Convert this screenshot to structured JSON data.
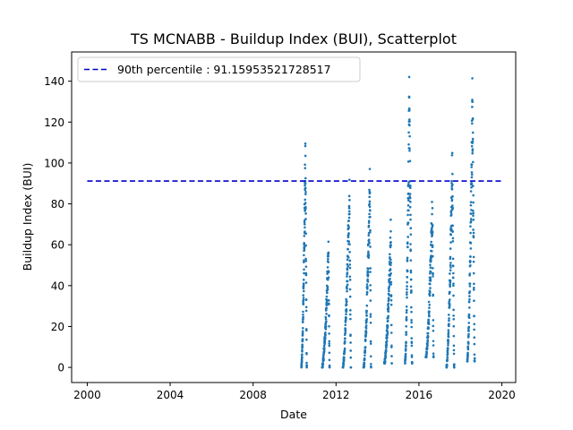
{
  "chart_data": {
    "type": "scatter",
    "title": "TS MCNABB - Buildup Index (BUI), Scatterplot",
    "xlabel": "Date",
    "ylabel": "Buildup Index (BUI)",
    "xlim": [
      "1999-04-01",
      "2020-09-01"
    ],
    "ylim": [
      -7.4,
      154.3
    ],
    "x_ticks": [
      "2000",
      "2004",
      "2008",
      "2012",
      "2016",
      "2020"
    ],
    "y_ticks": [
      0,
      20,
      40,
      60,
      80,
      100,
      120,
      140
    ],
    "grid": false,
    "legend_position": "upper-left",
    "colors": {
      "points": "#1f77b4",
      "percentile_line": "#0000cc"
    },
    "reference_line": {
      "label": "90th percentile : 91.15953521728517",
      "y": 91.15953521728517,
      "x_start": "2000-01-01",
      "x_end": "2020-01-01",
      "style": "dashed"
    },
    "series": [
      {
        "seasons": [
          {
            "start": "2010-05-01",
            "end": "2010-08-05",
            "min": 0,
            "peak": 120,
            "peak_date": "2010-07-10"
          },
          {
            "start": "2011-05-01",
            "end": "2011-09-10",
            "min": 0,
            "peak": 64,
            "peak_date": "2011-08-20"
          },
          {
            "start": "2012-05-01",
            "end": "2012-09-20",
            "min": 0,
            "peak": 99,
            "peak_date": "2012-08-25"
          },
          {
            "start": "2013-05-01",
            "end": "2013-09-10",
            "min": 0,
            "peak": 102,
            "peak_date": "2013-08-20"
          },
          {
            "start": "2014-05-01",
            "end": "2014-09-10",
            "min": 2,
            "peak": 75,
            "peak_date": "2014-08-25"
          },
          {
            "start": "2015-05-01",
            "end": "2015-09-05",
            "min": 2,
            "peak": 148,
            "peak_date": "2015-07-15"
          },
          {
            "start": "2016-05-01",
            "end": "2016-09-15",
            "min": 5,
            "peak": 93,
            "peak_date": "2016-08-25"
          },
          {
            "start": "2017-05-01",
            "end": "2017-09-15",
            "min": 0,
            "peak": 114,
            "peak_date": "2017-08-10"
          },
          {
            "start": "2018-05-01",
            "end": "2018-09-10",
            "min": 3,
            "peak": 148,
            "peak_date": "2018-08-01"
          }
        ]
      }
    ]
  }
}
